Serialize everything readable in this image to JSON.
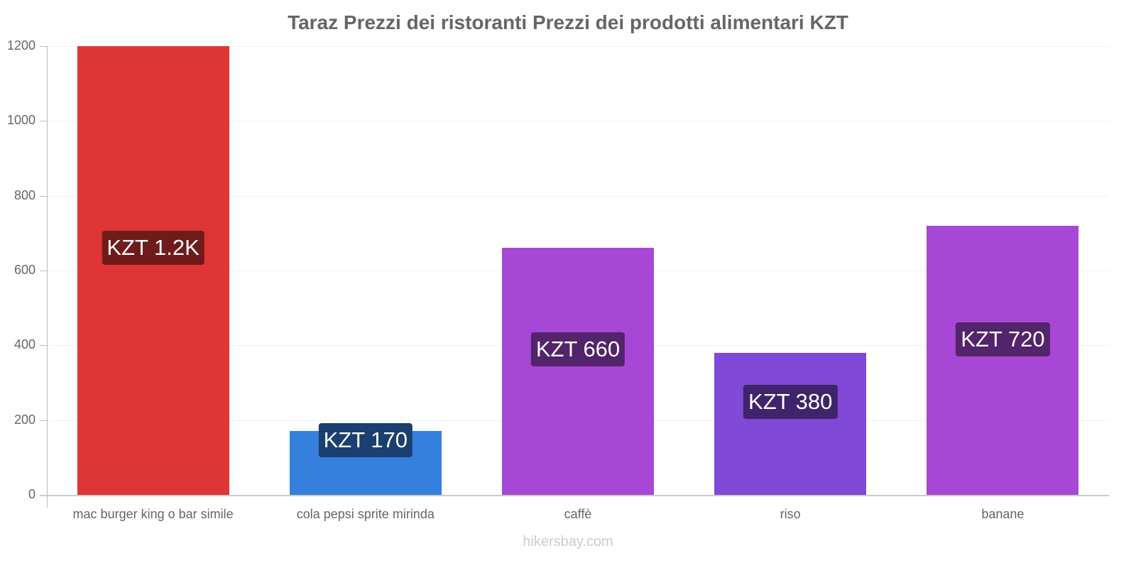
{
  "header": {
    "title": "Taraz Prezzi dei ristoranti Prezzi dei prodotti alimentari KZT"
  },
  "footer": {
    "watermark": "hikersbay.com"
  },
  "chart_data": {
    "type": "bar",
    "title": "Taraz Prezzi dei ristoranti Prezzi dei prodotti alimentari KZT",
    "xlabel": "",
    "ylabel": "",
    "ylim": [
      0,
      1200
    ],
    "yticks": [
      "0",
      "200",
      "400",
      "600",
      "800",
      "1000",
      "1200"
    ],
    "grid": true,
    "legend": null,
    "categories": [
      "mac burger king o bar simile",
      "cola pepsi sprite mirinda",
      "caffè",
      "riso",
      "banane"
    ],
    "values": [
      1200,
      170,
      660,
      380,
      720
    ],
    "data_labels": [
      "KZT 1.2K",
      "KZT 170",
      "KZT 660",
      "KZT 380",
      "KZT 720"
    ],
    "colors": [
      "#e03535",
      "#3580dd",
      "#a747d6",
      "#8049d6",
      "#a747d6"
    ],
    "label_colors": [
      "#701b1b",
      "#1b3f6e",
      "#53236b",
      "#40246b",
      "#53236b"
    ]
  }
}
